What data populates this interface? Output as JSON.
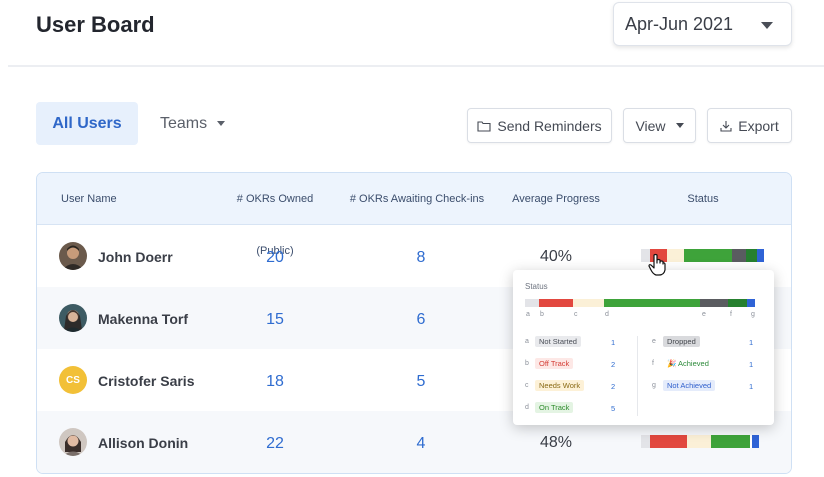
{
  "header": {
    "title": "User Board",
    "period": "Apr-Jun 2021"
  },
  "tabs": {
    "all_users": "All Users",
    "teams": "Teams"
  },
  "toolbar": {
    "send_reminders": "Send Reminders",
    "view": "View",
    "export": "Export"
  },
  "table": {
    "columns": [
      "User Name",
      "# OKRs Owned (Public)",
      "# OKRs Awaiting Check-ins",
      "Average Progress",
      "Status"
    ],
    "rows": [
      {
        "name": "John Doerr",
        "initials": "",
        "owned": "20",
        "awaiting": "8",
        "progress": "40%"
      },
      {
        "name": "Makenna Torf",
        "initials": "",
        "owned": "15",
        "awaiting": "6",
        "progress": ""
      },
      {
        "name": "Cristofer Saris",
        "initials": "CS",
        "owned": "18",
        "awaiting": "5",
        "progress": ""
      },
      {
        "name": "Allison Donin",
        "initials": "",
        "owned": "22",
        "awaiting": "4",
        "progress": "48%"
      }
    ]
  },
  "status_popover": {
    "title": "Status",
    "letters": [
      "a",
      "b",
      "c",
      "d",
      "e",
      "f",
      "g"
    ],
    "left": [
      {
        "letter": "a",
        "label": "Not Started",
        "count": "1"
      },
      {
        "letter": "b",
        "label": "Off Track",
        "count": "2"
      },
      {
        "letter": "c",
        "label": "Needs Work",
        "count": "2"
      },
      {
        "letter": "d",
        "label": "On Track",
        "count": "5"
      }
    ],
    "right": [
      {
        "letter": "e",
        "label": "Dropped",
        "count": "1"
      },
      {
        "letter": "f",
        "label": "🎉 Achieved",
        "count": "1"
      },
      {
        "letter": "g",
        "label": "Not Achieved",
        "count": "1"
      }
    ]
  },
  "colors": {
    "accent": "#2f67c8",
    "not_started": "#e3e4e8",
    "off_track": "#e2483f",
    "needs_work": "#fbf0d7",
    "on_track": "#3ea33a",
    "dropped": "#5a5c60",
    "achieved": "#26802f",
    "not_achieved": "#2f63d6"
  }
}
